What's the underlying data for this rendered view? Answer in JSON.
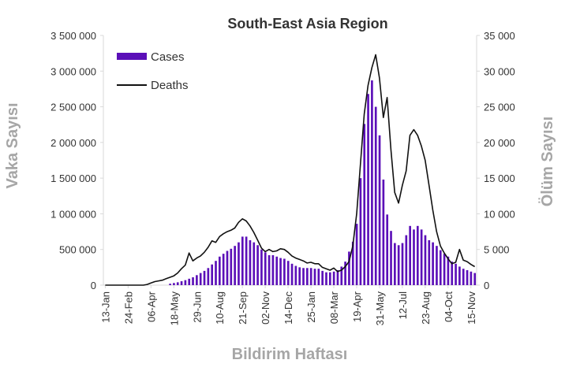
{
  "chart_data": {
    "type": "bar+line",
    "title": "South-East Asia Region",
    "xlabel": "Bildirim Haftası",
    "ylabel": "Vaka Sayısı",
    "y2label": "Ölüm Sayısı",
    "ylim": [
      0,
      3500000
    ],
    "y2lim": [
      0,
      35000
    ],
    "yticks": [
      "0",
      "500 000",
      "1 000 000",
      "1 500 000",
      "2 000 000",
      "2 500 000",
      "3 000 000",
      "3 500 000"
    ],
    "y2ticks": [
      "0",
      "5 000",
      "10 000",
      "15 000",
      "20 000",
      "25 000",
      "30 000",
      "35 000"
    ],
    "xticks": [
      "13-Jan",
      "24-Feb",
      "06-Apr",
      "18-May",
      "29-Jun",
      "10-Aug",
      "21-Sep",
      "02-Nov",
      "14-Dec",
      "25-Jan",
      "08-Mar",
      "19-Apr",
      "31-May",
      "12-Jul",
      "23-Aug",
      "04-Oct",
      "15-Nov"
    ],
    "xtick_every_weeks": 6,
    "legend": {
      "position": "top-left",
      "entries": [
        "Cases",
        "Deaths"
      ]
    },
    "colors": {
      "cases": "#5b0fb8",
      "deaths": "#111111"
    },
    "series": [
      {
        "name": "Cases",
        "type": "bar",
        "axis": "left",
        "values": [
          0,
          0,
          0,
          0,
          0,
          0,
          0,
          0,
          0,
          0,
          0,
          0,
          0,
          0,
          0,
          0,
          0,
          20000,
          30000,
          40000,
          55000,
          70000,
          90000,
          110000,
          140000,
          170000,
          200000,
          240000,
          290000,
          340000,
          400000,
          440000,
          480000,
          510000,
          550000,
          600000,
          680000,
          680000,
          630000,
          600000,
          560000,
          500000,
          460000,
          420000,
          420000,
          400000,
          380000,
          370000,
          340000,
          300000,
          270000,
          250000,
          240000,
          240000,
          240000,
          230000,
          230000,
          200000,
          180000,
          180000,
          190000,
          210000,
          260000,
          330000,
          470000,
          610000,
          860000,
          1500000,
          2260000,
          2680000,
          2870000,
          2500000,
          2100000,
          1480000,
          990000,
          760000,
          590000,
          560000,
          590000,
          700000,
          830000,
          780000,
          830000,
          780000,
          700000,
          630000,
          600000,
          550000,
          490000,
          440000,
          400000,
          330000,
          300000,
          260000,
          230000,
          210000,
          190000,
          170000
        ]
      },
      {
        "name": "Deaths",
        "type": "line",
        "axis": "right",
        "values": [
          0,
          0,
          0,
          0,
          0,
          0,
          0,
          0,
          0,
          0,
          0,
          100,
          300,
          500,
          600,
          700,
          900,
          1100,
          1300,
          1700,
          2300,
          2800,
          4500,
          3400,
          3800,
          4100,
          4600,
          5300,
          6200,
          6000,
          6800,
          7200,
          7500,
          7700,
          8000,
          8800,
          9300,
          9000,
          8300,
          7400,
          6300,
          5200,
          4700,
          5000,
          4700,
          4800,
          5100,
          5000,
          4600,
          4100,
          3800,
          3600,
          3400,
          3100,
          3200,
          3000,
          3000,
          2500,
          2300,
          2100,
          2400,
          1900,
          2100,
          2600,
          3300,
          5500,
          10000,
          17000,
          24000,
          28000,
          30500,
          32300,
          29000,
          23500,
          26300,
          19000,
          13000,
          11500,
          14000,
          16000,
          21000,
          21800,
          21000,
          19500,
          17500,
          14000,
          10500,
          7500,
          5500,
          4500,
          3700,
          3000,
          3200,
          5000,
          3500,
          3300,
          2900,
          2600
        ]
      }
    ]
  }
}
